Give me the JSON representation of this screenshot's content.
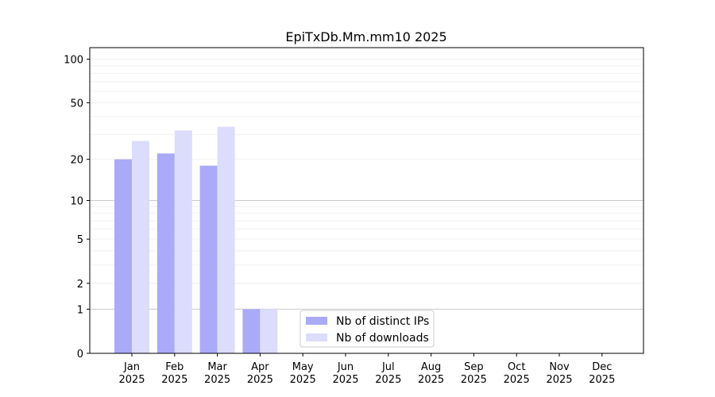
{
  "chart_data": {
    "type": "bar",
    "title": "EpiTxDb.Mm.mm10 2025",
    "xlabel": "",
    "ylabel": "",
    "y_scale": "log1p",
    "ylim": [
      0,
      120
    ],
    "y_ticks": [
      0,
      1,
      2,
      5,
      10,
      20,
      50,
      100
    ],
    "categories": [
      {
        "month": "Jan",
        "year": "2025"
      },
      {
        "month": "Feb",
        "year": "2025"
      },
      {
        "month": "Mar",
        "year": "2025"
      },
      {
        "month": "Apr",
        "year": "2025"
      },
      {
        "month": "May",
        "year": "2025"
      },
      {
        "month": "Jun",
        "year": "2025"
      },
      {
        "month": "Jul",
        "year": "2025"
      },
      {
        "month": "Aug",
        "year": "2025"
      },
      {
        "month": "Sep",
        "year": "2025"
      },
      {
        "month": "Oct",
        "year": "2025"
      },
      {
        "month": "Nov",
        "year": "2025"
      },
      {
        "month": "Dec",
        "year": "2025"
      }
    ],
    "series": [
      {
        "name": "Nb of distinct IPs",
        "color": "#aaaaf8",
        "values": [
          20,
          22,
          18,
          1,
          0,
          0,
          0,
          0,
          0,
          0,
          0,
          0
        ]
      },
      {
        "name": "Nb of downloads",
        "color": "#dcdcfc",
        "values": [
          27,
          32,
          34,
          1,
          0,
          0,
          0,
          0,
          0,
          0,
          0,
          0
        ]
      }
    ],
    "grid": true,
    "legend_position": "bottom-center"
  }
}
